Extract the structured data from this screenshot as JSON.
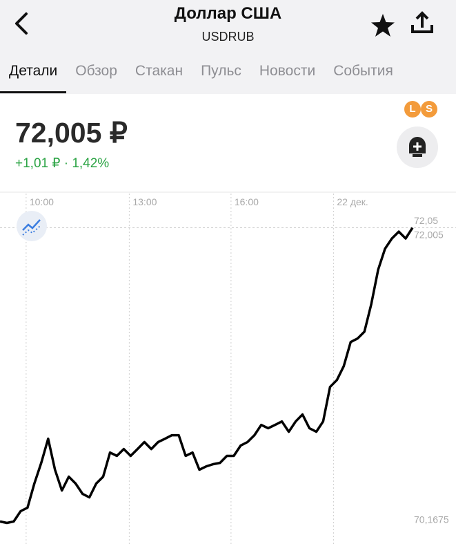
{
  "header": {
    "title": "Доллар США",
    "subtitle": "USDRUB"
  },
  "tabs": [
    "Детали",
    "Обзор",
    "Стакан",
    "Пульс",
    "Новости",
    "События"
  ],
  "quote": {
    "price": "72,005 ₽",
    "change": "+1,01 ₽ · 1,42%",
    "badges": [
      "L",
      "S"
    ]
  },
  "chart_data": {
    "type": "line",
    "series": [
      {
        "color": "#000000",
        "values": [
          70.155,
          70.146,
          70.155,
          70.22,
          70.242,
          70.394,
          70.524,
          70.676,
          70.481,
          70.35,
          70.437,
          70.394,
          70.329,
          70.307,
          70.394,
          70.437,
          70.589,
          70.568,
          70.611,
          70.568,
          70.611,
          70.655,
          70.611,
          70.655,
          70.676,
          70.698,
          70.698,
          70.568,
          70.589,
          70.481,
          70.502,
          70.516,
          70.524,
          70.568,
          70.568,
          70.633,
          70.655,
          70.698,
          70.763,
          70.742,
          70.763,
          70.785,
          70.72,
          70.785,
          70.829,
          70.742,
          70.72,
          70.785,
          71.002,
          71.046,
          71.133,
          71.285,
          71.307,
          71.35,
          71.524,
          71.741,
          71.872,
          71.937,
          71.98,
          71.937,
          72.005
        ]
      }
    ],
    "xlim": [
      0,
      60
    ],
    "xticks": [
      {
        "value": 3.8,
        "label": "10:00"
      },
      {
        "value": 18.8,
        "label": "13:00"
      },
      {
        "value": 33.6,
        "label": "16:00"
      },
      {
        "value": 48.5,
        "label": "22 дек."
      }
    ],
    "ylim": [
      70.0,
      72.22
    ],
    "yticks": [
      {
        "value": 72.05,
        "label": "72,05"
      },
      {
        "value": 70.1675,
        "label": "70,1675"
      }
    ],
    "price_line": {
      "value": 72.005,
      "label": "72,005"
    },
    "grid": true
  }
}
